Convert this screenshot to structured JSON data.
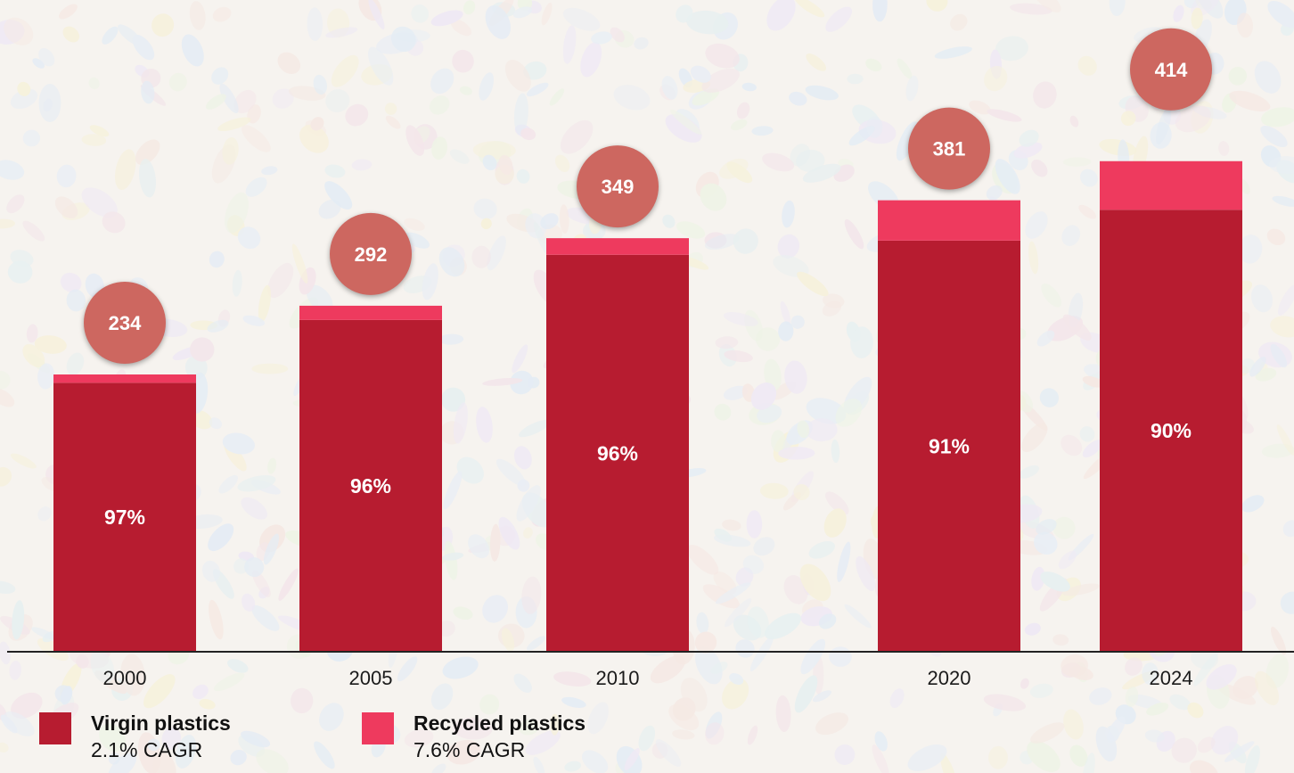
{
  "chart_data": {
    "type": "bar",
    "stacked": true,
    "categories": [
      "2000",
      "2005",
      "2010",
      "2020",
      "2024"
    ],
    "totals": [
      234,
      292,
      349,
      381,
      414
    ],
    "series": [
      {
        "name": "Virgin plastics",
        "share_labels": [
          "97%",
          "96%",
          "96%",
          "91%",
          "90%"
        ],
        "color": "#b71c30"
      },
      {
        "name": "Recycled plastics",
        "color": "#ee3a5e"
      }
    ],
    "virgin_values": [
      227,
      280,
      335,
      347,
      373
    ],
    "recycled_values": [
      7,
      12,
      14,
      34,
      41
    ],
    "bubble_color": "#cd6760",
    "axis_color": "#222222",
    "legend": [
      {
        "name": "Virgin plastics",
        "cagr": "2.1% CAGR",
        "color": "#b71c30"
      },
      {
        "name": "Recycled plastics",
        "cagr": "7.6% CAGR",
        "color": "#ee3a5e"
      }
    ],
    "legend_placement": "bottom-left",
    "grid": false
  }
}
